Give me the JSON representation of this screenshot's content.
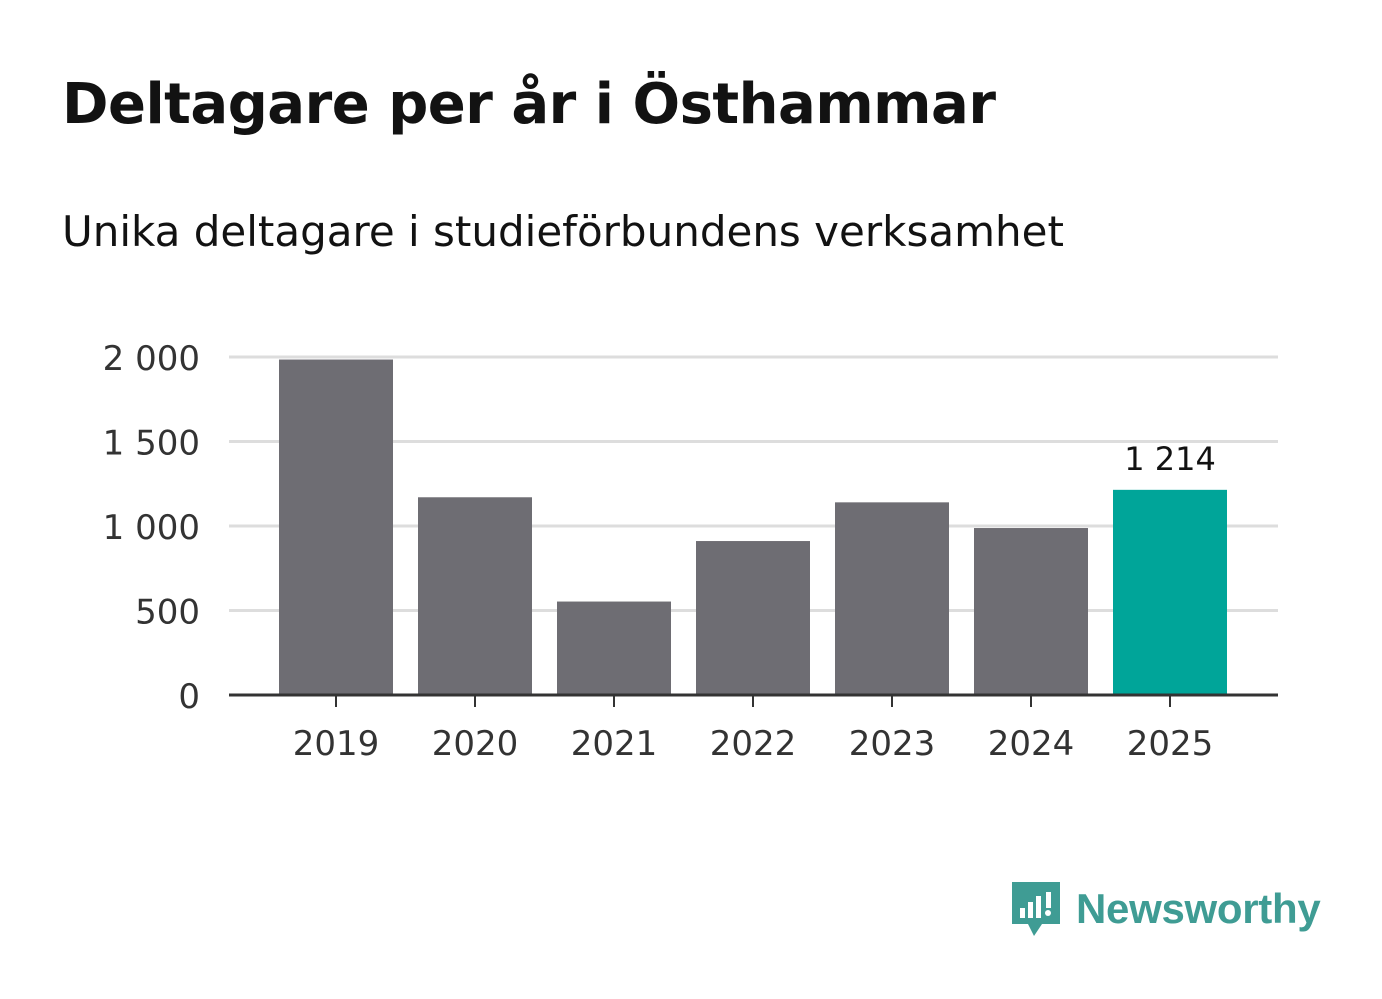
{
  "header": {
    "title": "Deltagare per år i Östhammar",
    "subtitle": "Unika deltagare i studieförbundens verksamhet"
  },
  "chart_data": {
    "type": "bar",
    "title": "Deltagare per år i Östhammar",
    "subtitle": "Unika deltagare i studieförbundens verksamhet",
    "categories": [
      "2019",
      "2020",
      "2021",
      "2022",
      "2023",
      "2024",
      "2025"
    ],
    "values": [
      1985,
      1170,
      553,
      911,
      1140,
      988,
      1214
    ],
    "ylim": [
      0,
      2000
    ],
    "yticks": [
      0,
      500,
      1000,
      1500,
      2000
    ],
    "ytick_labels": [
      "0",
      "500",
      "1 000",
      "1 500",
      "2 000"
    ],
    "xlabel": "",
    "ylabel": "",
    "grid": true,
    "highlight_index": 6,
    "highlight_label": "1 214",
    "colors": {
      "bar": "#6e6d73",
      "highlight": "#00a599",
      "grid": "#dddddd",
      "axis": "#333333"
    }
  },
  "brand": {
    "name": "Newsworthy",
    "icon": "bar-chart-speech-bubble-icon",
    "color": "#3f9c94"
  }
}
